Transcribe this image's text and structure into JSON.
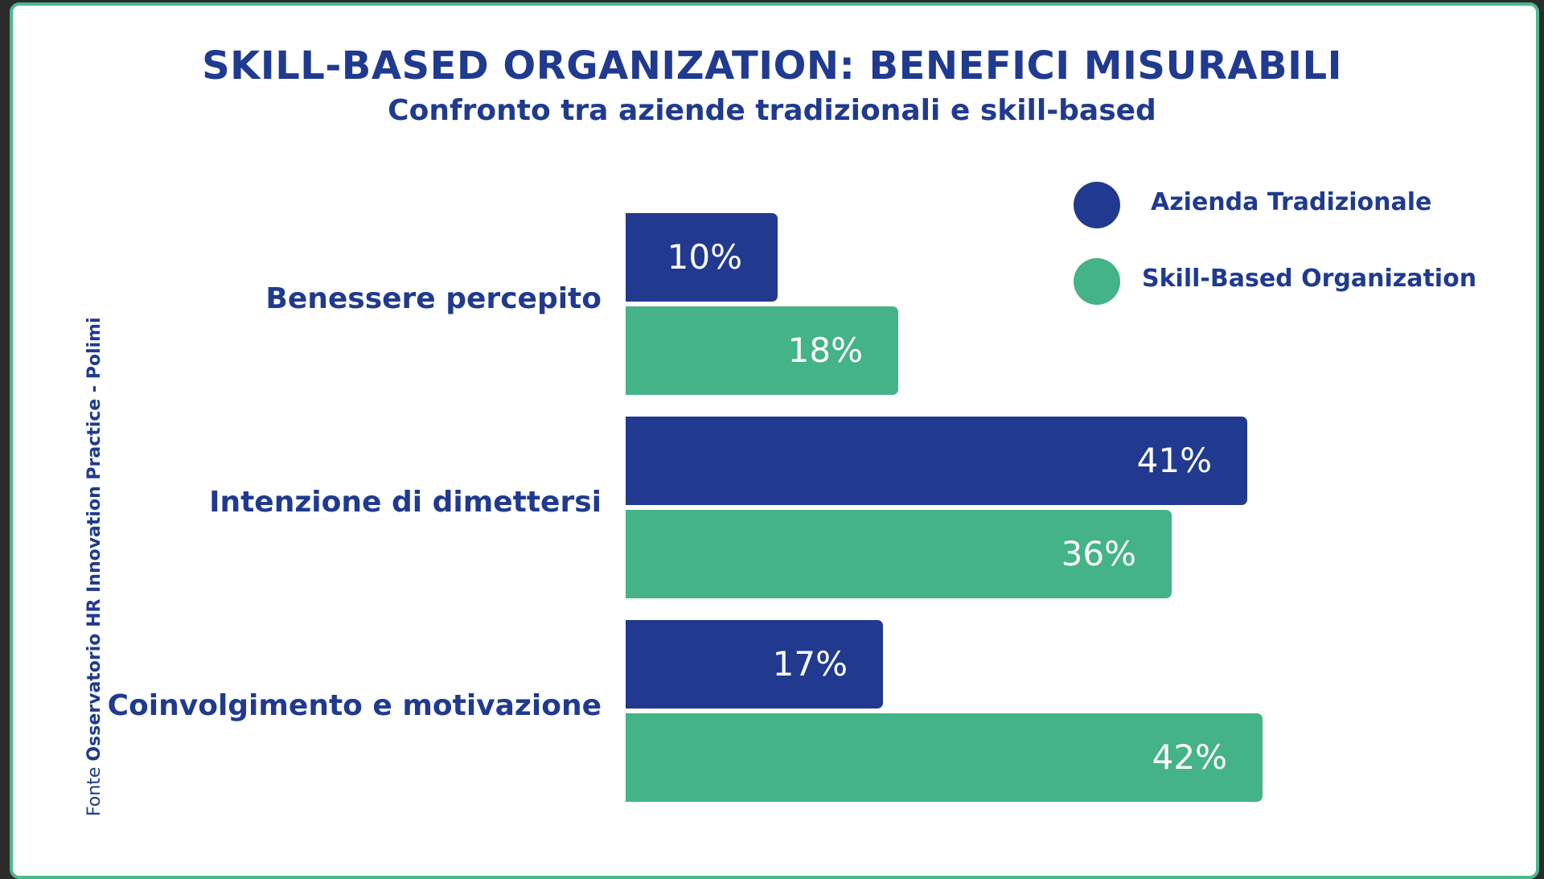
{
  "chart_data": {
    "type": "bar",
    "orientation": "horizontal",
    "title": "SKILL-BASED ORGANIZATION: BENEFICI MISURABILI",
    "subtitle": "Confronto tra aziende tradizionali e skill-based",
    "categories": [
      "Benessere percepito",
      "Intenzione di dimettersi",
      "Coinvolgimento e motivazione"
    ],
    "series": [
      {
        "name": "Azienda Tradizionale",
        "values": [
          10,
          41,
          17
        ],
        "labels": [
          "10%",
          "41%",
          "17%"
        ],
        "color": "#213a8f"
      },
      {
        "name": "Skill-Based Organization",
        "values": [
          18,
          36,
          42
        ],
        "labels": [
          "18%",
          "36%",
          "42%"
        ],
        "color": "#44b387"
      }
    ],
    "unit": "%",
    "xlim": [
      0,
      50
    ],
    "grid": false,
    "legend_position": "top-right"
  },
  "source": {
    "prefix": "Fonte",
    "name": "Osservatorio HR Innovation Practice - Polimi"
  },
  "colors": {
    "text": "#1f3a8f",
    "border": "#4bb98c"
  }
}
